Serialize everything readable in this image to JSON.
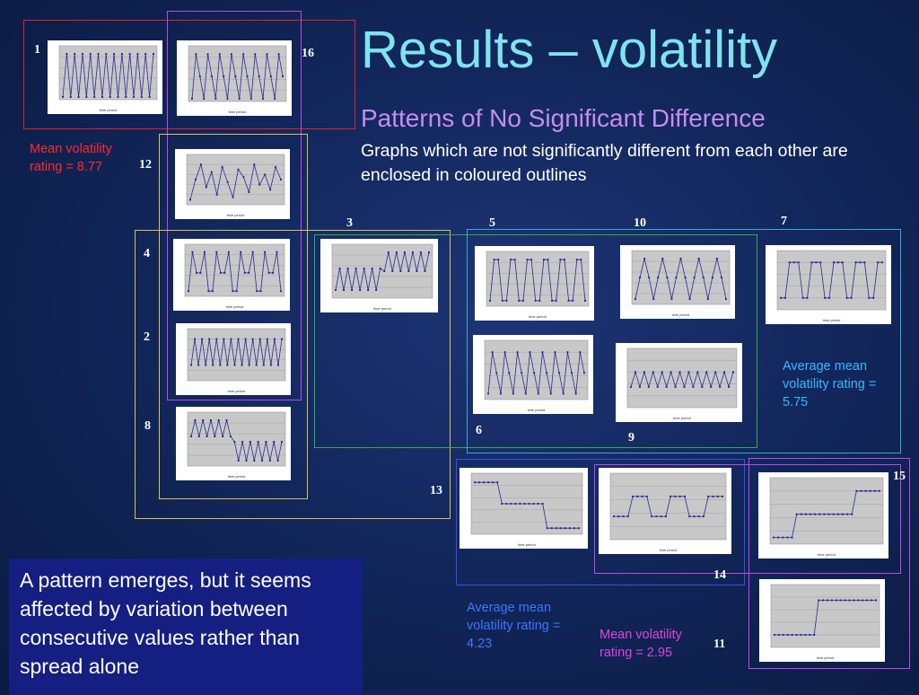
{
  "slide": {
    "title": "Results – volatility",
    "subtitle": "Patterns of No Significant Difference",
    "description": "Graphs which are not significantly different from each other are enclosed in coloured outlines",
    "bottom_text": "A pattern emerges, but it seems affected by variation between consecutive values rather than spread alone"
  },
  "annotations": {
    "red_group": "Mean volatility rating = 8.77",
    "cyan_group": "Average mean volatility rating = 5.75",
    "blue_group": "Average mean volatility rating = 4.23",
    "magenta_group": "Mean volatility rating = 2.95"
  },
  "colors": {
    "red": "#e0222b",
    "magenta": "#b94ce6",
    "yellow": "#d8c64a",
    "green": "#3aa94a",
    "cyan": "#3aa7d4",
    "blue": "#3a4fe8",
    "series": "#2b2a96",
    "label_red": "#ff2a2a",
    "label_cyan": "#3ab7ff",
    "label_blue": "#3a78ff",
    "label_magenta": "#dd44dd"
  },
  "graph_numbers": [
    "1",
    "16",
    "12",
    "4",
    "2",
    "8",
    "3",
    "5",
    "10",
    "7",
    "6",
    "9",
    "13",
    "14",
    "15",
    "11"
  ],
  "thumbnails": [
    {
      "id": "1",
      "pattern": "alt-fast",
      "axis_x": "time period"
    },
    {
      "id": "16",
      "pattern": "zig-3lvl",
      "axis_x": "time period"
    },
    {
      "id": "12",
      "pattern": "zig-irreg",
      "axis_x": "time period"
    },
    {
      "id": "4",
      "pattern": "spikes",
      "axis_x": "time period"
    },
    {
      "id": "2",
      "pattern": "alt-mid",
      "axis_x": "time period"
    },
    {
      "id": "8",
      "pattern": "shift-down",
      "axis_x": "time period"
    },
    {
      "id": "3",
      "pattern": "shift-up",
      "axis_x": "time period"
    },
    {
      "id": "5",
      "pattern": "square",
      "axis_x": "time period"
    },
    {
      "id": "10",
      "pattern": "triangle",
      "axis_x": "time period"
    },
    {
      "id": "7",
      "pattern": "square-wide",
      "axis_x": "time period"
    },
    {
      "id": "6",
      "pattern": "zig-wide",
      "axis_x": "time period"
    },
    {
      "id": "9",
      "pattern": "alt-small",
      "axis_x": "time period"
    },
    {
      "id": "13",
      "pattern": "step-down",
      "axis_x": "time period"
    },
    {
      "id": "14",
      "pattern": "steps-mid",
      "axis_x": "time period"
    },
    {
      "id": "15",
      "pattern": "step-up3",
      "axis_x": "time period"
    },
    {
      "id": "11",
      "pattern": "step-up",
      "axis_x": "time period"
    }
  ]
}
